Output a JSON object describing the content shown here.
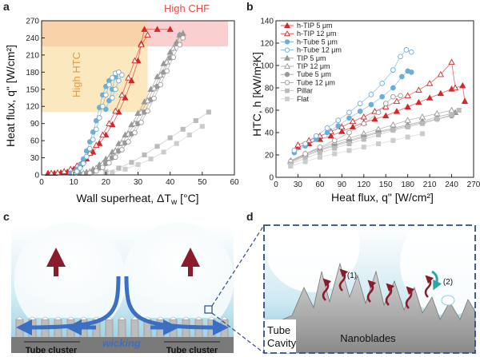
{
  "panels": {
    "a": "a",
    "b": "b",
    "c": "c",
    "d": "d"
  },
  "panel_a": {
    "xlabel": "Wall superheat, ΔT",
    "xlabel_sub": "w",
    "xlabel_unit": " [°C]",
    "ylabel": "Heat flux, q\" [W/cm²]",
    "high_chf": "High CHF",
    "high_htc": "High HTC",
    "high_chf_color": "#f4a7a7",
    "high_htc_color": "#f7d68a"
  },
  "panel_b": {
    "xlabel": "Heat flux, q\" [W/cm²]",
    "ylabel": "HTC, h [kW/m²K]"
  },
  "panel_c": {
    "label_left": "Tube cluster",
    "label_right": "Tube cluster",
    "wicking": "wicking"
  },
  "panel_d": {
    "label_1": "(1)",
    "label_2": "(2)",
    "tube_cavity_1": "Tube",
    "tube_cavity_2": "Cavity",
    "nanoblades": "Nanoblades"
  },
  "chart_data": [
    {
      "type": "scatter",
      "panel": "a",
      "title": "",
      "xlabel": "Wall superheat, ΔTw [°C]",
      "ylabel": "Heat flux, q\" [W/cm²]",
      "xlim": [
        0,
        60
      ],
      "ylim": [
        0,
        270
      ],
      "xticks": [
        0,
        10,
        20,
        30,
        40,
        50,
        60
      ],
      "yticks": [
        0,
        30,
        60,
        90,
        120,
        150,
        180,
        210,
        240,
        270
      ],
      "annotations": [
        "High CHF",
        "High HTC"
      ],
      "series": [
        {
          "name": "h-TIP 5 μm",
          "color": "#d62728",
          "marker": "triangle",
          "filled": true,
          "x": [
            2,
            4,
            6,
            8,
            10,
            12,
            14,
            16,
            18,
            20,
            22,
            24,
            26,
            28,
            30,
            31,
            32,
            36,
            40
          ],
          "y": [
            3,
            3,
            4,
            5,
            10,
            18,
            28,
            40,
            55,
            70,
            88,
            110,
            135,
            165,
            200,
            230,
            255,
            255,
            255
          ]
        },
        {
          "name": "h-TIP 12 μm",
          "color": "#d62728",
          "marker": "triangle",
          "filled": false,
          "x": [
            3,
            5,
            7,
            9,
            11,
            13,
            15,
            17,
            19,
            21,
            23,
            25,
            27,
            29,
            31,
            33
          ],
          "y": [
            3,
            4,
            6,
            10,
            16,
            25,
            38,
            52,
            70,
            90,
            112,
            140,
            170,
            200,
            228,
            245
          ]
        },
        {
          "name": "h-Tube 5 μm",
          "color": "#6baed6",
          "marker": "circle",
          "filled": true,
          "x": [
            9,
            10,
            11,
            12,
            13,
            14,
            15,
            16,
            17,
            18,
            19,
            20,
            21,
            22,
            23,
            22,
            21,
            20
          ],
          "y": [
            3,
            5,
            10,
            18,
            28,
            42,
            58,
            75,
            95,
            118,
            140,
            155,
            165,
            170,
            172,
            150,
            130,
            115
          ]
        },
        {
          "name": "h-Tube 12 μm",
          "color": "#6baed6",
          "marker": "circle",
          "filled": false,
          "x": [
            10,
            11,
            12,
            13,
            14,
            15,
            16,
            17,
            18,
            19,
            20,
            21,
            22,
            23,
            24,
            25,
            24,
            23,
            22
          ],
          "y": [
            3,
            6,
            12,
            20,
            32,
            46,
            62,
            80,
            100,
            120,
            140,
            158,
            170,
            178,
            180,
            175,
            165,
            150,
            135
          ]
        },
        {
          "name": "TIP 5 μm",
          "color": "#999999",
          "marker": "triangle",
          "filled": true,
          "x": [
            12,
            14,
            16,
            18,
            20,
            22,
            24,
            26,
            28,
            30,
            32,
            34,
            36,
            38,
            40,
            42,
            43,
            44
          ],
          "y": [
            3,
            5,
            10,
            18,
            28,
            40,
            55,
            70,
            88,
            108,
            128,
            150,
            172,
            195,
            215,
            232,
            245,
            248
          ]
        },
        {
          "name": "TIP 12 μm",
          "color": "#999999",
          "marker": "triangle",
          "filled": false,
          "x": [
            13,
            15,
            17,
            19,
            21,
            23,
            25,
            27,
            29,
            31,
            33,
            35,
            37,
            39,
            41,
            43
          ],
          "y": [
            3,
            6,
            12,
            20,
            30,
            42,
            56,
            72,
            90,
            110,
            130,
            152,
            175,
            198,
            222,
            245
          ]
        },
        {
          "name": "Tube 5 μm",
          "color": "#999999",
          "marker": "circle",
          "filled": true,
          "x": [
            14,
            16,
            18,
            20,
            22,
            24,
            26,
            28,
            30,
            32,
            34,
            36,
            38,
            40,
            42,
            43
          ],
          "y": [
            3,
            6,
            12,
            20,
            30,
            42,
            56,
            72,
            90,
            110,
            132,
            155,
            180,
            205,
            230,
            245
          ]
        },
        {
          "name": "Tube 12 μm",
          "color": "#999999",
          "marker": "circle",
          "filled": false,
          "x": [
            15,
            17,
            19,
            21,
            23,
            25,
            27,
            29,
            31,
            33,
            35,
            37,
            39,
            41,
            43,
            44
          ],
          "y": [
            3,
            7,
            13,
            21,
            31,
            44,
            58,
            74,
            92,
            112,
            134,
            158,
            182,
            206,
            228,
            240
          ]
        },
        {
          "name": "Pillar",
          "color": "#bbbbbb",
          "marker": "square",
          "filled": true,
          "x": [
            20,
            24,
            28,
            32,
            36,
            40,
            44,
            48,
            52
          ],
          "y": [
            5,
            12,
            22,
            35,
            50,
            65,
            80,
            95,
            110
          ]
        },
        {
          "name": "Flat",
          "color": "#cccccc",
          "marker": "square",
          "filled": true,
          "x": [
            22,
            26,
            30,
            34,
            38,
            42,
            46,
            50
          ],
          "y": [
            4,
            10,
            18,
            28,
            40,
            55,
            70,
            85
          ]
        }
      ]
    },
    {
      "type": "scatter",
      "panel": "b",
      "title": "",
      "xlabel": "Heat flux, q\" [W/cm²]",
      "ylabel": "HTC, h [kW/m²K]",
      "xlim": [
        0,
        270
      ],
      "ylim": [
        0,
        140
      ],
      "xticks": [
        0,
        30,
        60,
        90,
        120,
        150,
        180,
        210,
        240,
        270
      ],
      "yticks": [
        0,
        20,
        40,
        60,
        80,
        100,
        120,
        140
      ],
      "legend": "top-left",
      "series": [
        {
          "name": "h-TIP 5 μm",
          "color": "#d62728",
          "marker": "triangle",
          "filled": true,
          "x": [
            30,
            45,
            60,
            75,
            90,
            105,
            120,
            135,
            150,
            165,
            180,
            195,
            210,
            225,
            240,
            255,
            258
          ],
          "y": [
            27,
            30,
            34,
            37,
            41,
            45,
            49,
            52,
            55,
            59,
            63,
            67,
            71,
            75,
            79,
            82,
            68
          ]
        },
        {
          "name": "h-TIP 12 μm",
          "color": "#d62728",
          "marker": "triangle",
          "filled": false,
          "x": [
            30,
            45,
            60,
            75,
            90,
            105,
            120,
            135,
            150,
            165,
            180,
            195,
            210,
            225,
            240,
            245
          ],
          "y": [
            29,
            33,
            37,
            41,
            45,
            50,
            54,
            59,
            63,
            68,
            73,
            78,
            84,
            92,
            103,
            80
          ]
        },
        {
          "name": "h-Tube 5 μm",
          "color": "#6baed6",
          "marker": "circle",
          "filled": true,
          "x": [
            25,
            40,
            55,
            70,
            85,
            100,
            115,
            130,
            145,
            160,
            172,
            180,
            185
          ],
          "y": [
            22,
            28,
            34,
            40,
            46,
            53,
            59,
            65,
            72,
            80,
            90,
            95,
            94
          ]
        },
        {
          "name": "h-Tube 12 μm",
          "color": "#6baed6",
          "marker": "circle",
          "filled": false,
          "x": [
            25,
            40,
            55,
            70,
            85,
            100,
            115,
            130,
            145,
            160,
            170,
            178,
            185
          ],
          "y": [
            24,
            30,
            37,
            44,
            51,
            58,
            66,
            74,
            84,
            96,
            108,
            114,
            112
          ]
        },
        {
          "name": "TIP 5 μm",
          "color": "#999999",
          "marker": "triangle",
          "filled": true,
          "x": [
            20,
            40,
            60,
            80,
            100,
            120,
            140,
            160,
            180,
            200,
            220,
            240,
            245
          ],
          "y": [
            14,
            20,
            25,
            29,
            33,
            37,
            41,
            44,
            47,
            50,
            54,
            57,
            58
          ]
        },
        {
          "name": "TIP 12 μm",
          "color": "#999999",
          "marker": "triangle",
          "filled": false,
          "x": [
            20,
            40,
            60,
            80,
            100,
            120,
            140,
            160,
            180,
            200,
            220,
            240
          ],
          "y": [
            15,
            21,
            26,
            31,
            35,
            39,
            43,
            47,
            51,
            54,
            57,
            60
          ]
        },
        {
          "name": "Tube 5 μm",
          "color": "#999999",
          "marker": "circle",
          "filled": true,
          "x": [
            20,
            40,
            60,
            80,
            100,
            120,
            140,
            160,
            180,
            200,
            220,
            240
          ],
          "y": [
            13,
            19,
            24,
            28,
            32,
            36,
            40,
            43,
            46,
            49,
            52,
            55
          ]
        },
        {
          "name": "Tube 12 μm",
          "color": "#999999",
          "marker": "circle",
          "filled": false,
          "x": [
            20,
            40,
            60,
            80,
            100,
            120,
            140,
            150,
            160,
            170
          ],
          "y": [
            14,
            21,
            27,
            33,
            40,
            48,
            58,
            66,
            72,
            73
          ]
        },
        {
          "name": "Pillar",
          "color": "#bbbbbb",
          "marker": "square",
          "filled": true,
          "x": [
            20,
            40,
            60,
            80,
            100,
            120,
            140,
            160,
            180,
            200,
            220,
            240,
            250
          ],
          "y": [
            12,
            17,
            22,
            26,
            30,
            34,
            38,
            42,
            45,
            48,
            52,
            56,
            60
          ]
        },
        {
          "name": "Flat",
          "color": "#cccccc",
          "marker": "square",
          "filled": true,
          "x": [
            20,
            40,
            60,
            80,
            100,
            120,
            140,
            160,
            180,
            200
          ],
          "y": [
            10,
            14,
            18,
            21,
            24,
            27,
            30,
            33,
            36,
            39
          ]
        }
      ]
    }
  ]
}
